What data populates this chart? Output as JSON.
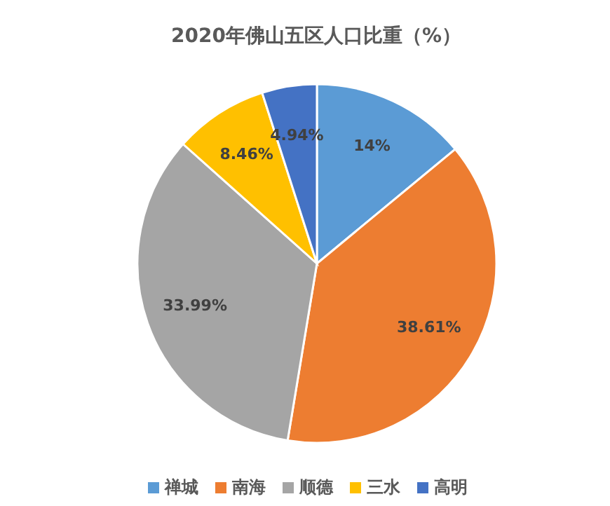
{
  "chart_data": {
    "type": "pie",
    "title": "2020年佛山五区人口比重（%）",
    "categories": [
      "禅城",
      "南海",
      "顺德",
      "三水",
      "高明"
    ],
    "values": [
      14,
      38.61,
      33.99,
      8.46,
      4.94
    ],
    "value_labels": [
      "14%",
      "38.61%",
      "33.99%",
      "8.46%",
      "4.94%"
    ],
    "colors": [
      "#5b9bd5",
      "#ed7d31",
      "#a5a5a5",
      "#ffc000",
      "#4472c4"
    ],
    "legend": "bottom"
  }
}
